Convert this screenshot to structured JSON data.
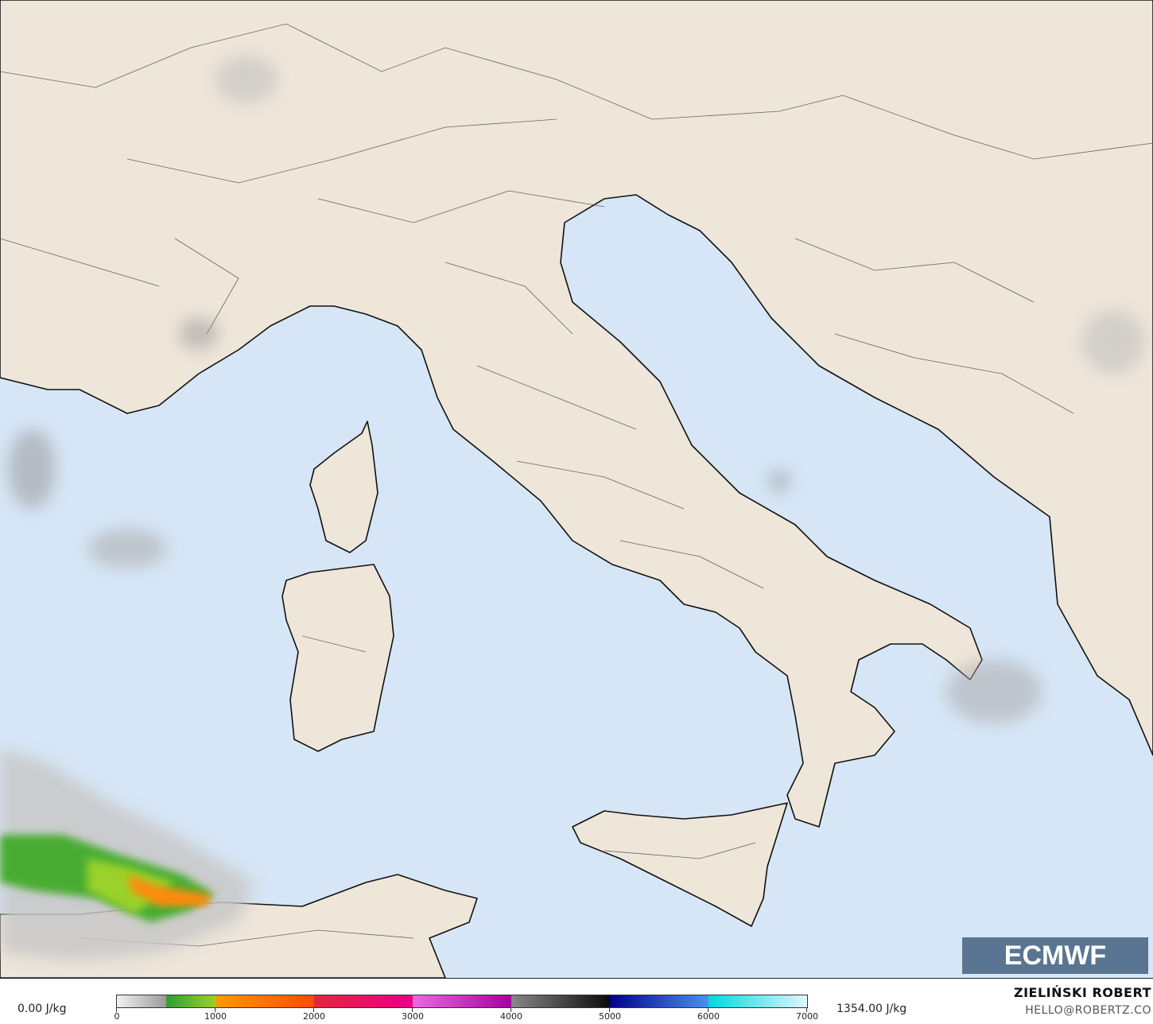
{
  "map": {
    "colors": {
      "sea": "#d6e6f6",
      "land": "#efe6da",
      "border": "#222222"
    },
    "logo_text": "ECMWF"
  },
  "legend": {
    "min_label": "0.00 J/kg",
    "max_label": "1354.00 J/kg",
    "ticks": [
      "0",
      "1000",
      "2000",
      "3000",
      "4000",
      "5000",
      "6000",
      "7000"
    ],
    "range": [
      0,
      7000
    ],
    "colors": [
      "#f2f2f2",
      "#9a9a9a",
      "#2e9e34",
      "#9ad12a",
      "#ff9a00",
      "#ff4a00",
      "#e0283c",
      "#e8008a",
      "#ea6ae0",
      "#a8009e",
      "#888888",
      "#0a0a0a",
      "#00008a",
      "#4a90ee",
      "#00d8e0",
      "#e0f6ff"
    ]
  },
  "credits": {
    "author": "ZIELIŃSKI ROBERT",
    "email": "HELLO@ROBERTZ.CO"
  }
}
